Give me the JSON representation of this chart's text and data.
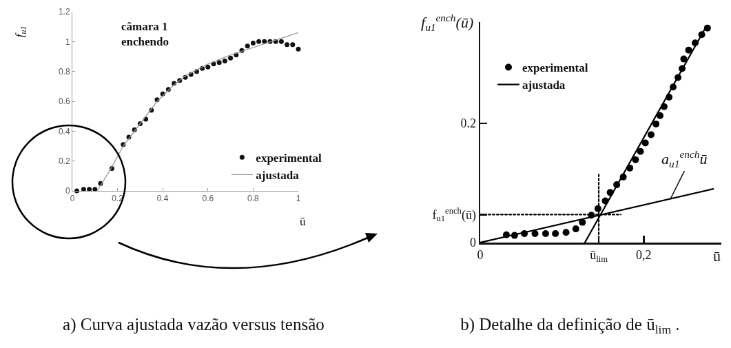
{
  "chart_data": [
    {
      "type": "scatter",
      "title": "a) Curva ajustada vazão versus tensão",
      "xlabel": "ū",
      "ylabel": "f$_{u1}$",
      "annotations": [
        "câmara 1\nenchendo"
      ],
      "xlim": [
        0,
        1
      ],
      "ylim": [
        0,
        1.2
      ],
      "xticks": [
        0,
        0.2,
        0.4,
        0.6,
        0.8,
        1
      ],
      "yticks": [
        0,
        0.2,
        0.4,
        0.6,
        0.8,
        1,
        1.2
      ],
      "legend": "bottom right",
      "series": [
        {
          "name": "experimental",
          "type": "scatter",
          "marker": "circle",
          "color": "#111111",
          "x": [
            0.02,
            0.05,
            0.075,
            0.1,
            0.125,
            0.175,
            0.225,
            0.25,
            0.275,
            0.3,
            0.325,
            0.35,
            0.375,
            0.4,
            0.425,
            0.45,
            0.475,
            0.5,
            0.525,
            0.55,
            0.575,
            0.6,
            0.625,
            0.65,
            0.675,
            0.7,
            0.725,
            0.75,
            0.775,
            0.8,
            0.825,
            0.85,
            0.875,
            0.9,
            0.925,
            0.95,
            0.975,
            1
          ],
          "values": [
            0,
            0.01,
            0.01,
            0.01,
            0.05,
            0.15,
            0.31,
            0.36,
            0.41,
            0.45,
            0.48,
            0.54,
            0.61,
            0.65,
            0.68,
            0.72,
            0.74,
            0.76,
            0.78,
            0.8,
            0.82,
            0.83,
            0.85,
            0.86,
            0.87,
            0.89,
            0.91,
            0.94,
            0.97,
            0.99,
            1,
            1,
            1,
            1,
            1,
            0.98,
            0.98,
            0.95
          ]
        },
        {
          "name": "ajustada",
          "type": "line",
          "marker": "none",
          "line_style": "solid",
          "color": "#999999",
          "x": [
            0.11,
            0.175,
            0.225,
            0.3,
            0.375,
            0.45,
            0.5,
            0.6,
            0.7,
            0.8,
            0.9,
            1
          ],
          "values": [
            0,
            0.16,
            0.3,
            0.45,
            0.6,
            0.71,
            0.77,
            0.85,
            0.91,
            0.96,
            1.01,
            1.06
          ]
        }
      ]
    },
    {
      "type": "scatter",
      "title": "b) Detalhe da definição de ū$_{lim}$ .",
      "xlabel": "ū",
      "ylabel": "f$_{u1}$$^{ench}$(ū)",
      "annotations": [
        {
          "text": "a$_{u1}$$^{ench}$ū",
          "x": 0.233,
          "y": 0.074
        }
      ],
      "xlim": [
        0,
        0.295
      ],
      "ylim": [
        0,
        0.37
      ],
      "xticks": [
        0,
        {
          "value": 0.145,
          "label": "ū$_{lim}$"
        },
        {
          "value": 0.2,
          "label": "0,2"
        }
      ],
      "yticks": [
        0,
        {
          "value": 0.047,
          "label": "f$_{u1}$$^{ench}$(ū)"
        },
        0.2
      ],
      "legend": "top left",
      "series": [
        {
          "name": "experimental",
          "type": "scatter",
          "marker": "circle",
          "color": "#000000",
          "x": [
            0.032,
            0.042,
            0.054,
            0.067,
            0.08,
            0.092,
            0.105,
            0.117,
            0.125,
            0.136,
            0.144,
            0.153,
            0.159,
            0.167,
            0.175,
            0.183,
            0.19,
            0.196,
            0.202,
            0.209,
            0.215,
            0.22,
            0.225,
            0.231,
            0.236,
            0.242,
            0.247,
            0.249,
            0.255,
            0.263,
            0.271,
            0.278
          ],
          "values": [
            0.013,
            0.012,
            0.015,
            0.015,
            0.015,
            0.015,
            0.017,
            0.023,
            0.034,
            0.046,
            0.057,
            0.07,
            0.084,
            0.097,
            0.11,
            0.125,
            0.139,
            0.153,
            0.167,
            0.181,
            0.199,
            0.213,
            0.228,
            0.244,
            0.261,
            0.277,
            0.292,
            0.308,
            0.323,
            0.335,
            0.349,
            0.36
          ]
        },
        {
          "name": "ajustada",
          "type": "line",
          "marker": "none",
          "line_style": "solid",
          "color": "#000000",
          "x": [
            0,
            0.285,
            null,
            0.128,
            0.275
          ],
          "values": [
            0,
            0.09,
            null,
            0,
            0.359
          ]
        },
        {
          "type": "line",
          "marker": "none",
          "line_style": "dotted",
          "color": "#000000",
          "x": [
            0.145,
            0.145,
            null,
            0,
            0.172
          ],
          "values": [
            0,
            0.114,
            null,
            0.047,
            0.047
          ]
        }
      ]
    }
  ]
}
